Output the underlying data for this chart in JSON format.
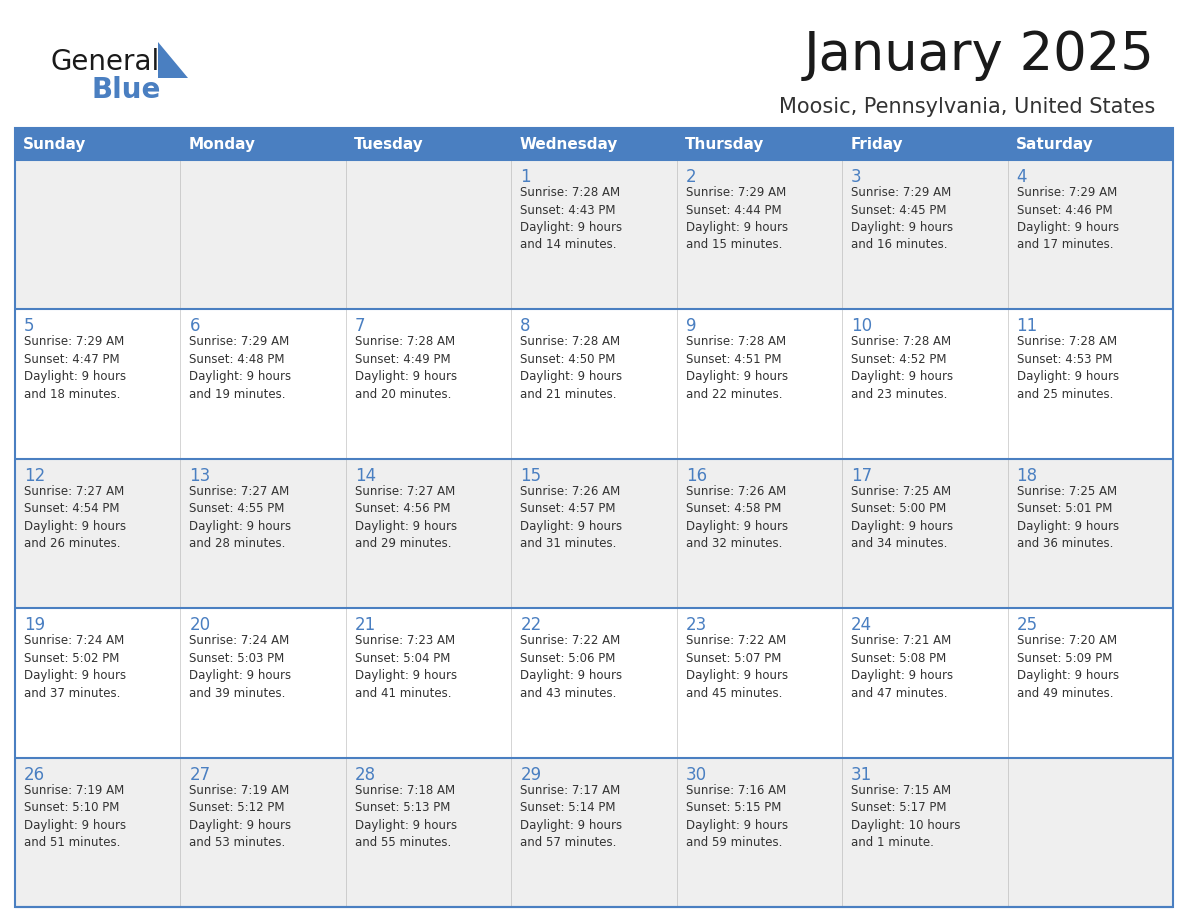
{
  "title": "January 2025",
  "subtitle": "Moosic, Pennsylvania, United States",
  "header_bg_color": "#4A7FC1",
  "header_text_color": "#FFFFFF",
  "cell_bg_odd": "#EFEFEF",
  "cell_bg_even": "#FFFFFF",
  "day_number_color": "#4A7FC1",
  "text_color": "#333333",
  "line_color": "#4A7FC1",
  "divider_color": "#C0C0C0",
  "days_of_week": [
    "Sunday",
    "Monday",
    "Tuesday",
    "Wednesday",
    "Thursday",
    "Friday",
    "Saturday"
  ],
  "calendar_data": [
    [
      {
        "day": 0,
        "info": ""
      },
      {
        "day": 0,
        "info": ""
      },
      {
        "day": 0,
        "info": ""
      },
      {
        "day": 1,
        "info": "Sunrise: 7:28 AM\nSunset: 4:43 PM\nDaylight: 9 hours\nand 14 minutes."
      },
      {
        "day": 2,
        "info": "Sunrise: 7:29 AM\nSunset: 4:44 PM\nDaylight: 9 hours\nand 15 minutes."
      },
      {
        "day": 3,
        "info": "Sunrise: 7:29 AM\nSunset: 4:45 PM\nDaylight: 9 hours\nand 16 minutes."
      },
      {
        "day": 4,
        "info": "Sunrise: 7:29 AM\nSunset: 4:46 PM\nDaylight: 9 hours\nand 17 minutes."
      }
    ],
    [
      {
        "day": 5,
        "info": "Sunrise: 7:29 AM\nSunset: 4:47 PM\nDaylight: 9 hours\nand 18 minutes."
      },
      {
        "day": 6,
        "info": "Sunrise: 7:29 AM\nSunset: 4:48 PM\nDaylight: 9 hours\nand 19 minutes."
      },
      {
        "day": 7,
        "info": "Sunrise: 7:28 AM\nSunset: 4:49 PM\nDaylight: 9 hours\nand 20 minutes."
      },
      {
        "day": 8,
        "info": "Sunrise: 7:28 AM\nSunset: 4:50 PM\nDaylight: 9 hours\nand 21 minutes."
      },
      {
        "day": 9,
        "info": "Sunrise: 7:28 AM\nSunset: 4:51 PM\nDaylight: 9 hours\nand 22 minutes."
      },
      {
        "day": 10,
        "info": "Sunrise: 7:28 AM\nSunset: 4:52 PM\nDaylight: 9 hours\nand 23 minutes."
      },
      {
        "day": 11,
        "info": "Sunrise: 7:28 AM\nSunset: 4:53 PM\nDaylight: 9 hours\nand 25 minutes."
      }
    ],
    [
      {
        "day": 12,
        "info": "Sunrise: 7:27 AM\nSunset: 4:54 PM\nDaylight: 9 hours\nand 26 minutes."
      },
      {
        "day": 13,
        "info": "Sunrise: 7:27 AM\nSunset: 4:55 PM\nDaylight: 9 hours\nand 28 minutes."
      },
      {
        "day": 14,
        "info": "Sunrise: 7:27 AM\nSunset: 4:56 PM\nDaylight: 9 hours\nand 29 minutes."
      },
      {
        "day": 15,
        "info": "Sunrise: 7:26 AM\nSunset: 4:57 PM\nDaylight: 9 hours\nand 31 minutes."
      },
      {
        "day": 16,
        "info": "Sunrise: 7:26 AM\nSunset: 4:58 PM\nDaylight: 9 hours\nand 32 minutes."
      },
      {
        "day": 17,
        "info": "Sunrise: 7:25 AM\nSunset: 5:00 PM\nDaylight: 9 hours\nand 34 minutes."
      },
      {
        "day": 18,
        "info": "Sunrise: 7:25 AM\nSunset: 5:01 PM\nDaylight: 9 hours\nand 36 minutes."
      }
    ],
    [
      {
        "day": 19,
        "info": "Sunrise: 7:24 AM\nSunset: 5:02 PM\nDaylight: 9 hours\nand 37 minutes."
      },
      {
        "day": 20,
        "info": "Sunrise: 7:24 AM\nSunset: 5:03 PM\nDaylight: 9 hours\nand 39 minutes."
      },
      {
        "day": 21,
        "info": "Sunrise: 7:23 AM\nSunset: 5:04 PM\nDaylight: 9 hours\nand 41 minutes."
      },
      {
        "day": 22,
        "info": "Sunrise: 7:22 AM\nSunset: 5:06 PM\nDaylight: 9 hours\nand 43 minutes."
      },
      {
        "day": 23,
        "info": "Sunrise: 7:22 AM\nSunset: 5:07 PM\nDaylight: 9 hours\nand 45 minutes."
      },
      {
        "day": 24,
        "info": "Sunrise: 7:21 AM\nSunset: 5:08 PM\nDaylight: 9 hours\nand 47 minutes."
      },
      {
        "day": 25,
        "info": "Sunrise: 7:20 AM\nSunset: 5:09 PM\nDaylight: 9 hours\nand 49 minutes."
      }
    ],
    [
      {
        "day": 26,
        "info": "Sunrise: 7:19 AM\nSunset: 5:10 PM\nDaylight: 9 hours\nand 51 minutes."
      },
      {
        "day": 27,
        "info": "Sunrise: 7:19 AM\nSunset: 5:12 PM\nDaylight: 9 hours\nand 53 minutes."
      },
      {
        "day": 28,
        "info": "Sunrise: 7:18 AM\nSunset: 5:13 PM\nDaylight: 9 hours\nand 55 minutes."
      },
      {
        "day": 29,
        "info": "Sunrise: 7:17 AM\nSunset: 5:14 PM\nDaylight: 9 hours\nand 57 minutes."
      },
      {
        "day": 30,
        "info": "Sunrise: 7:16 AM\nSunset: 5:15 PM\nDaylight: 9 hours\nand 59 minutes."
      },
      {
        "day": 31,
        "info": "Sunrise: 7:15 AM\nSunset: 5:17 PM\nDaylight: 10 hours\nand 1 minute."
      },
      {
        "day": 0,
        "info": ""
      }
    ]
  ],
  "logo_text_general": "General",
  "logo_text_blue": "Blue",
  "logo_triangle_color": "#4A7FC1",
  "logo_general_color": "#1a1a1a"
}
